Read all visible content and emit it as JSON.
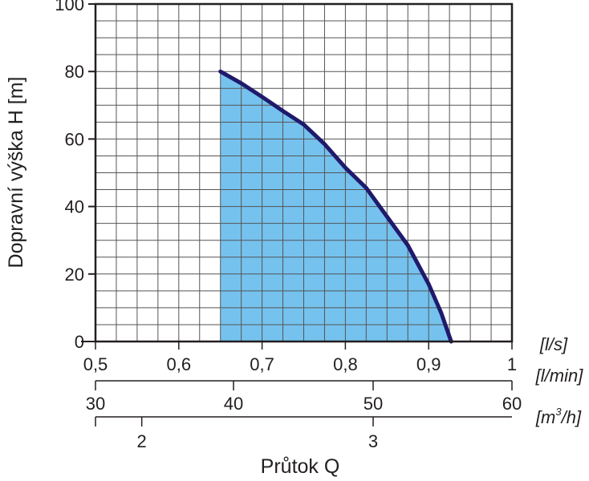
{
  "chart_data": {
    "type": "area",
    "ylabel": "Dopravní výška H [m]",
    "xlabel": "Průtok Q",
    "ylim": [
      0,
      100
    ],
    "xlim": [
      0.5,
      1
    ],
    "grid": true,
    "y_ticks": [
      "0",
      "20",
      "40",
      "60",
      "80",
      "100"
    ],
    "x_axes": [
      {
        "unit": "[l/s]",
        "ticks": [
          {
            "v": 0.5,
            "label": "0,5"
          },
          {
            "v": 0.6,
            "label": "0,6"
          },
          {
            "v": 0.7,
            "label": "0,7"
          },
          {
            "v": 0.8,
            "label": "0,8"
          },
          {
            "v": 0.9,
            "label": "0,9"
          },
          {
            "v": 1.0,
            "label": "1"
          }
        ]
      },
      {
        "unit": "[l/min]",
        "ticks": [
          {
            "v": 30,
            "label": "30"
          },
          {
            "v": 40,
            "label": "40"
          },
          {
            "v": 50,
            "label": "50"
          },
          {
            "v": 60,
            "label": "60"
          }
        ]
      },
      {
        "unit": "[m3/h]",
        "ticks": [
          {
            "v": 2,
            "label": "2"
          },
          {
            "v": 3,
            "label": "3"
          }
        ]
      }
    ],
    "series": [
      {
        "x": [
          0.65,
          0.675,
          0.7,
          0.725,
          0.75,
          0.775,
          0.8,
          0.825,
          0.85,
          0.875,
          0.9,
          0.915,
          0.927
        ],
        "y": [
          80,
          76.5,
          72.5,
          68.3,
          64.3,
          58.5,
          51.5,
          45.5,
          37,
          28.5,
          17,
          8.5,
          0
        ]
      }
    ],
    "colors": {
      "fill": "#75c2ee",
      "line": "#1f1a6b",
      "grid": "#555555"
    }
  }
}
